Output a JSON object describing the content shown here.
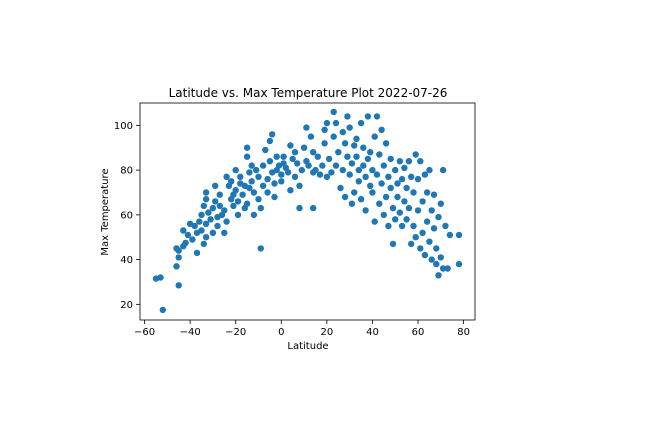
{
  "chart_data": {
    "type": "scatter",
    "title": "Latitude vs. Max Temperature Plot 2022-07-26",
    "xlabel": "Latitude",
    "ylabel": "Max Temperature",
    "xlim": [
      -62,
      85
    ],
    "ylim": [
      13,
      110
    ],
    "xticks": [
      -60,
      -40,
      -20,
      0,
      20,
      40,
      60,
      80
    ],
    "yticks": [
      20,
      40,
      60,
      80,
      100
    ],
    "grid": false,
    "marker_color": "#1f77b4",
    "points": [
      [
        -55,
        31.5
      ],
      [
        -53,
        32
      ],
      [
        -52,
        17.5
      ],
      [
        -46,
        45
      ],
      [
        -46,
        37
      ],
      [
        -45,
        28.5
      ],
      [
        -45,
        41
      ],
      [
        -45,
        44
      ],
      [
        -43,
        46
      ],
      [
        -42,
        47.5
      ],
      [
        -43,
        53
      ],
      [
        -41,
        51
      ],
      [
        -40,
        56
      ],
      [
        -39,
        49
      ],
      [
        -38,
        55
      ],
      [
        -37,
        43
      ],
      [
        -37,
        52
      ],
      [
        -36,
        57
      ],
      [
        -35,
        60
      ],
      [
        -35,
        53
      ],
      [
        -34,
        64
      ],
      [
        -34,
        47
      ],
      [
        -33,
        67
      ],
      [
        -33,
        70
      ],
      [
        -33,
        56
      ],
      [
        -33,
        50
      ],
      [
        -32,
        61
      ],
      [
        -31,
        58
      ],
      [
        -30,
        63
      ],
      [
        -30,
        52
      ],
      [
        -29,
        66
      ],
      [
        -29,
        73
      ],
      [
        -28,
        59
      ],
      [
        -28,
        55
      ],
      [
        -27,
        64
      ],
      [
        -27,
        69
      ],
      [
        -26,
        60
      ],
      [
        -25,
        62
      ],
      [
        -25,
        52
      ],
      [
        -24,
        57
      ],
      [
        -24,
        77
      ],
      [
        -23,
        73
      ],
      [
        -22,
        67
      ],
      [
        -22,
        75
      ],
      [
        -21,
        69
      ],
      [
        -21,
        64
      ],
      [
        -20,
        80
      ],
      [
        -20,
        71
      ],
      [
        -19,
        66
      ],
      [
        -19,
        60
      ],
      [
        -18,
        74
      ],
      [
        -18,
        77
      ],
      [
        -17,
        69
      ],
      [
        -16,
        73
      ],
      [
        -16,
        63
      ],
      [
        -15,
        90
      ],
      [
        -15,
        86
      ],
      [
        -15,
        65
      ],
      [
        -14,
        79
      ],
      [
        -14,
        72
      ],
      [
        -13,
        75
      ],
      [
        -13,
        82
      ],
      [
        -12,
        70
      ],
      [
        -12,
        60
      ],
      [
        -11,
        80
      ],
      [
        -10,
        77
      ],
      [
        -10,
        67
      ],
      [
        -9,
        45
      ],
      [
        -9,
        63
      ],
      [
        -8,
        73
      ],
      [
        -8,
        82
      ],
      [
        -7,
        89
      ],
      [
        -6,
        76
      ],
      [
        -6,
        70
      ],
      [
        -5,
        84
      ],
      [
        -5,
        93
      ],
      [
        -4,
        79
      ],
      [
        -4,
        96
      ],
      [
        -3,
        74
      ],
      [
        -3,
        68
      ],
      [
        -2,
        80
      ],
      [
        -2,
        86
      ],
      [
        -1,
        82
      ],
      [
        0,
        78
      ],
      [
        0,
        75
      ],
      [
        1,
        83
      ],
      [
        1,
        86
      ],
      [
        2,
        81
      ],
      [
        3,
        79
      ],
      [
        4,
        91
      ],
      [
        4,
        71
      ],
      [
        5,
        85
      ],
      [
        6,
        88
      ],
      [
        6,
        77
      ],
      [
        7,
        83
      ],
      [
        8,
        73
      ],
      [
        8,
        63
      ],
      [
        9,
        80
      ],
      [
        10,
        90
      ],
      [
        11,
        99
      ],
      [
        11,
        84
      ],
      [
        12,
        82
      ],
      [
        13,
        95
      ],
      [
        14,
        88
      ],
      [
        14,
        79
      ],
      [
        14,
        63
      ],
      [
        15,
        80
      ],
      [
        16,
        86
      ],
      [
        17,
        78
      ],
      [
        18,
        82
      ],
      [
        19,
        92
      ],
      [
        19,
        98
      ],
      [
        20,
        101
      ],
      [
        20,
        77
      ],
      [
        21,
        85
      ],
      [
        22,
        79
      ],
      [
        23,
        106
      ],
      [
        23,
        95
      ],
      [
        24,
        82
      ],
      [
        24,
        101
      ],
      [
        25,
        88
      ],
      [
        26,
        72
      ],
      [
        27,
        97
      ],
      [
        27,
        80
      ],
      [
        28,
        92
      ],
      [
        28,
        68
      ],
      [
        29,
        104
      ],
      [
        29,
        86
      ],
      [
        30,
        99
      ],
      [
        30,
        78
      ],
      [
        31,
        65
      ],
      [
        31,
        83
      ],
      [
        32,
        91
      ],
      [
        32,
        70
      ],
      [
        33,
        86
      ],
      [
        33,
        94
      ],
      [
        34,
        75
      ],
      [
        34,
        80
      ],
      [
        35,
        101
      ],
      [
        35,
        67
      ],
      [
        36,
        82
      ],
      [
        36,
        90
      ],
      [
        37,
        62
      ],
      [
        37,
        77
      ],
      [
        38,
        104
      ],
      [
        38,
        85
      ],
      [
        39,
        73
      ],
      [
        39,
        88
      ],
      [
        40,
        70
      ],
      [
        40,
        80
      ],
      [
        41,
        95
      ],
      [
        41,
        57
      ],
      [
        42,
        104
      ],
      [
        42,
        78
      ],
      [
        43,
        65
      ],
      [
        43,
        87
      ],
      [
        44,
        98
      ],
      [
        44,
        74
      ],
      [
        45,
        60
      ],
      [
        45,
        82
      ],
      [
        46,
        92
      ],
      [
        46,
        68
      ],
      [
        47,
        77
      ],
      [
        47,
        55
      ],
      [
        48,
        85
      ],
      [
        48,
        72
      ],
      [
        49,
        47
      ],
      [
        49,
        63
      ],
      [
        50,
        80
      ],
      [
        50,
        58
      ],
      [
        51,
        74
      ],
      [
        51,
        68
      ],
      [
        52,
        84
      ],
      [
        52,
        61
      ],
      [
        53,
        76
      ],
      [
        53,
        55
      ],
      [
        54,
        81
      ],
      [
        54,
        66
      ],
      [
        55,
        72
      ],
      [
        55,
        58
      ],
      [
        56,
        84
      ],
      [
        56,
        63
      ],
      [
        57,
        47
      ],
      [
        57,
        77
      ],
      [
        58,
        70
      ],
      [
        58,
        55
      ],
      [
        59,
        87
      ],
      [
        59,
        50
      ],
      [
        60,
        76
      ],
      [
        60,
        62
      ],
      [
        61,
        84
      ],
      [
        61,
        45
      ],
      [
        62,
        66
      ],
      [
        62,
        52
      ],
      [
        63,
        78
      ],
      [
        63,
        42
      ],
      [
        64,
        70
      ],
      [
        64,
        57
      ],
      [
        65,
        80
      ],
      [
        65,
        48
      ],
      [
        66,
        62
      ],
      [
        66,
        40
      ],
      [
        67,
        54
      ],
      [
        67,
        69
      ],
      [
        68,
        38
      ],
      [
        68,
        45
      ],
      [
        69,
        33
      ],
      [
        69,
        59
      ],
      [
        70,
        65
      ],
      [
        70,
        41
      ],
      [
        71,
        80
      ],
      [
        71,
        36
      ],
      [
        72,
        55
      ],
      [
        73,
        36
      ],
      [
        74,
        51
      ],
      [
        78,
        38
      ],
      [
        78,
        51
      ]
    ]
  }
}
